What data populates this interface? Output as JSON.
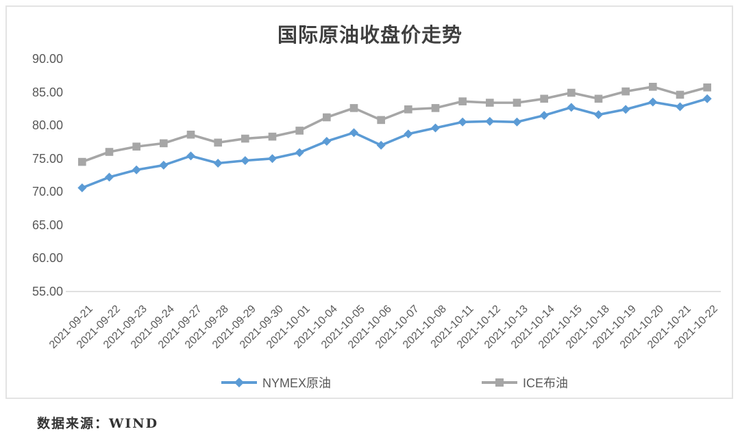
{
  "chart_data": {
    "type": "line",
    "title": "国际原油收盘价走势",
    "categories": [
      "2021-09-21",
      "2021-09-22",
      "2021-09-23",
      "2021-09-24",
      "2021-09-27",
      "2021-09-28",
      "2021-09-29",
      "2021-09-30",
      "2021-10-01",
      "2021-10-04",
      "2021-10-05",
      "2021-10-06",
      "2021-10-07",
      "2021-10-08",
      "2021-10-11",
      "2021-10-12",
      "2021-10-13",
      "2021-10-14",
      "2021-10-15",
      "2021-10-18",
      "2021-10-19",
      "2021-10-20",
      "2021-10-21",
      "2021-10-22"
    ],
    "series": [
      {
        "name": "NYMEX原油",
        "color": "#5B9BD5",
        "marker": "diamond",
        "values": [
          70.6,
          72.2,
          73.3,
          74.0,
          75.4,
          74.3,
          74.7,
          75.0,
          75.9,
          77.6,
          78.9,
          77.0,
          78.7,
          79.6,
          80.5,
          80.6,
          80.5,
          81.5,
          82.7,
          81.6,
          82.4,
          83.5,
          82.8,
          84.0
        ]
      },
      {
        "name": "ICE布油",
        "color": "#A6A6A6",
        "marker": "square",
        "values": [
          74.5,
          76.0,
          76.8,
          77.3,
          78.6,
          77.4,
          78.0,
          78.3,
          79.2,
          81.2,
          82.6,
          80.8,
          82.4,
          82.6,
          83.6,
          83.4,
          83.4,
          84.0,
          84.9,
          84.0,
          85.1,
          85.8,
          84.6,
          85.7
        ]
      }
    ],
    "y_axis": {
      "min": 55,
      "max": 90,
      "step": 5,
      "decimals": 2
    },
    "x_axis": {
      "label_rotation_deg": 45
    },
    "grid": false,
    "legend_position": "bottom",
    "axis_color": "#D6D6D6",
    "text_color": "#595959",
    "source_note": "数据来源：WIND"
  }
}
